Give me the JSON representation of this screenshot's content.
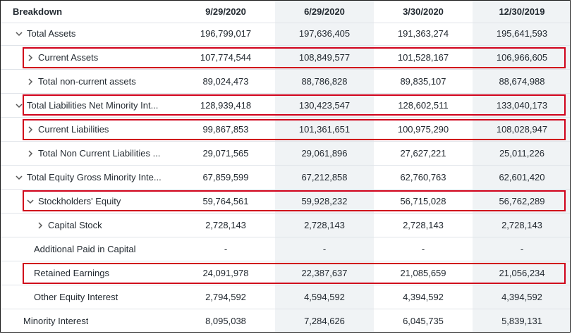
{
  "header": {
    "label": "Breakdown",
    "dates": [
      "9/29/2020",
      "6/29/2020",
      "3/30/2020",
      "12/30/2019"
    ]
  },
  "rows": [
    {
      "label": "Total Assets",
      "icon": "chevron-down-icon",
      "values": [
        "196,799,017",
        "197,636,405",
        "191,363,274",
        "195,641,593"
      ]
    },
    {
      "label": "Current Assets",
      "icon": "chevron-right-icon",
      "values": [
        "107,774,544",
        "108,849,577",
        "101,528,167",
        "106,966,605"
      ]
    },
    {
      "label": "Total non-current assets",
      "icon": "chevron-right-icon",
      "values": [
        "89,024,473",
        "88,786,828",
        "89,835,107",
        "88,674,988"
      ]
    },
    {
      "label": "Total Liabilities Net Minority Int...",
      "icon": "chevron-down-icon",
      "values": [
        "128,939,418",
        "130,423,547",
        "128,602,511",
        "133,040,173"
      ]
    },
    {
      "label": "Current Liabilities",
      "icon": "chevron-right-icon",
      "values": [
        "99,867,853",
        "101,361,651",
        "100,975,290",
        "108,028,947"
      ]
    },
    {
      "label": "Total Non Current Liabilities ...",
      "icon": "chevron-right-icon",
      "values": [
        "29,071,565",
        "29,061,896",
        "27,627,221",
        "25,011,226"
      ]
    },
    {
      "label": "Total Equity Gross Minority Inte...",
      "icon": "chevron-down-icon",
      "values": [
        "67,859,599",
        "67,212,858",
        "62,760,763",
        "62,601,420"
      ]
    },
    {
      "label": "Stockholders' Equity",
      "icon": "chevron-down-icon",
      "values": [
        "59,764,561",
        "59,928,232",
        "56,715,028",
        "56,762,289"
      ]
    },
    {
      "label": "Capital Stock",
      "icon": "chevron-right-icon",
      "values": [
        "2,728,143",
        "2,728,143",
        "2,728,143",
        "2,728,143"
      ]
    },
    {
      "label": "Additional Paid in Capital",
      "icon": "",
      "values": [
        "-",
        "-",
        "-",
        "-"
      ]
    },
    {
      "label": "Retained Earnings",
      "icon": "",
      "values": [
        "24,091,978",
        "22,387,637",
        "21,085,659",
        "21,056,234"
      ]
    },
    {
      "label": "Other Equity Interest",
      "icon": "",
      "values": [
        "2,794,592",
        "4,594,592",
        "4,394,592",
        "4,394,592"
      ]
    },
    {
      "label": "Minority Interest",
      "icon": "",
      "values": [
        "8,095,038",
        "7,284,626",
        "6,045,735",
        "5,839,131"
      ]
    }
  ],
  "highlighted_rows": [
    "Current Assets",
    "Total Liabilities Net Minority Int...",
    "Current Liabilities",
    "Stockholders' Equity",
    "Retained Earnings"
  ],
  "colors": {
    "highlight": "#d0021b",
    "shade": "#f0f3f5",
    "text": "#232a31",
    "chevron": "#555555"
  }
}
